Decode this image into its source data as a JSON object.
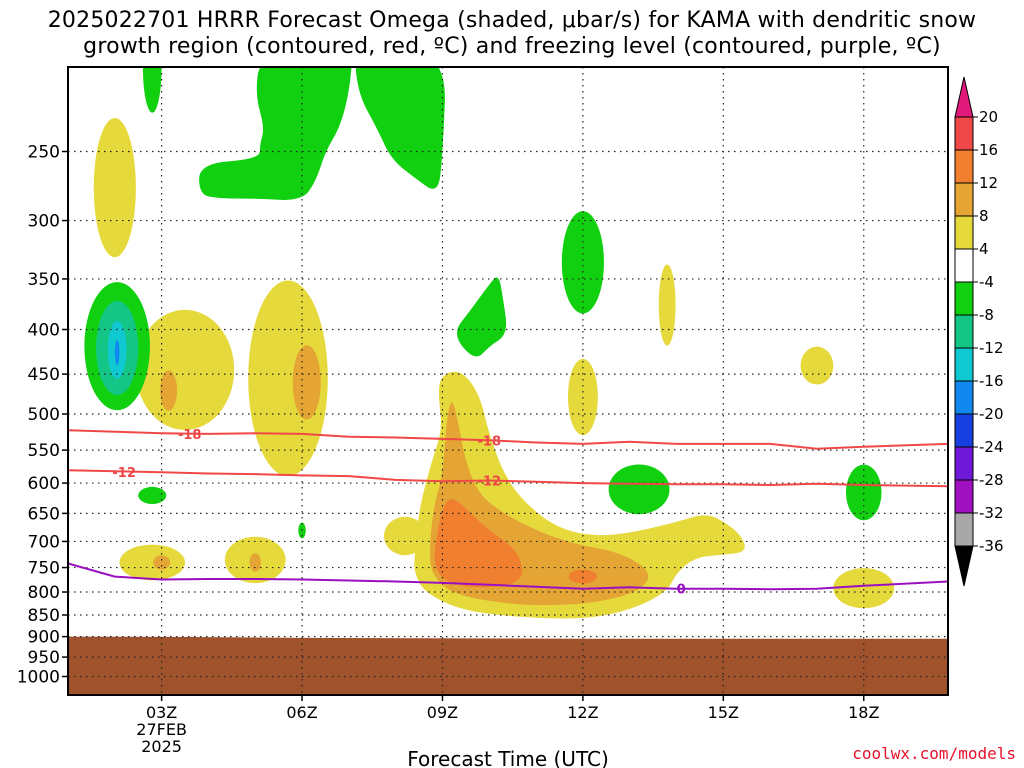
{
  "title_lines": [
    "2025022701 HRRR Forecast Omega (shaded, μbar/s) for KAMA with dendritic snow",
    "growth region (contoured, red, ºC) and freezing level (contoured, purple, ºC)"
  ],
  "credit": "coolwx.com/models",
  "chart_data": {
    "type": "contour",
    "xlabel": "Forecast Time (UTC)",
    "ylabel": "",
    "y_scale": "log-pressure",
    "ylim_hpa": [
      1050,
      200
    ],
    "xlim_hours": [
      0,
      18.8
    ],
    "y_ticks": [
      250,
      300,
      350,
      400,
      450,
      500,
      550,
      600,
      650,
      700,
      750,
      800,
      850,
      900,
      950,
      1000
    ],
    "x_ticks": [
      {
        "hour": 2,
        "label": "03Z",
        "sub": [
          "27FEB",
          "2025"
        ]
      },
      {
        "hour": 5,
        "label": "06Z",
        "sub": []
      },
      {
        "hour": 8,
        "label": "09Z",
        "sub": []
      },
      {
        "hour": 11,
        "label": "12Z",
        "sub": []
      },
      {
        "hour": 14,
        "label": "15Z",
        "sub": []
      },
      {
        "hour": 17,
        "label": "18Z",
        "sub": []
      }
    ],
    "grid": true,
    "colorbar": {
      "labels": [
        "20",
        "16",
        "12",
        "8",
        "4",
        "-4",
        "-8",
        "-12",
        "-16",
        "-20",
        "-24",
        "-28",
        "-32",
        "-36"
      ],
      "bins": [
        {
          "from": 20,
          "to": null,
          "color": "#e0197a"
        },
        {
          "from": 16,
          "to": 20,
          "color": "#f04848"
        },
        {
          "from": 12,
          "to": 16,
          "color": "#f07f30"
        },
        {
          "from": 8,
          "to": 12,
          "color": "#e4a534"
        },
        {
          "from": 4,
          "to": 8,
          "color": "#e6d93c"
        },
        {
          "from": -4,
          "to": 4,
          "color": "#ffffff"
        },
        {
          "from": -8,
          "to": -4,
          "color": "#10d010"
        },
        {
          "from": -12,
          "to": -8,
          "color": "#14c686"
        },
        {
          "from": -16,
          "to": -12,
          "color": "#10c8d0"
        },
        {
          "from": -20,
          "to": -16,
          "color": "#1088f0"
        },
        {
          "from": -24,
          "to": -20,
          "color": "#1840e0"
        },
        {
          "from": -28,
          "to": -24,
          "color": "#7018d8"
        },
        {
          "from": -32,
          "to": -28,
          "color": "#a010c0"
        },
        {
          "from": -36,
          "to": -32,
          "color": "#a8a8a8"
        },
        {
          "from": null,
          "to": -36,
          "color": "#000000"
        }
      ]
    },
    "isotherms": [
      {
        "label": "-18",
        "color": "#f04848",
        "label_hours": [
          2.6,
          9.0
        ],
        "points": [
          [
            0,
            522
          ],
          [
            2,
            526
          ],
          [
            3,
            527
          ],
          [
            4,
            526
          ],
          [
            5,
            527
          ],
          [
            6,
            531
          ],
          [
            7,
            532
          ],
          [
            8,
            534
          ],
          [
            9,
            536
          ],
          [
            10,
            539
          ],
          [
            11,
            541
          ],
          [
            12,
            538
          ],
          [
            13,
            541
          ],
          [
            14,
            541
          ],
          [
            15,
            541
          ],
          [
            16,
            548
          ],
          [
            17,
            545
          ],
          [
            18.8,
            541
          ]
        ]
      },
      {
        "label": "-12",
        "color": "#f04848",
        "label_hours": [
          1.2,
          9.0
        ],
        "points": [
          [
            0,
            580
          ],
          [
            2,
            583
          ],
          [
            3,
            585
          ],
          [
            4,
            586
          ],
          [
            5,
            588
          ],
          [
            6,
            589
          ],
          [
            7,
            595
          ],
          [
            8,
            597
          ],
          [
            9,
            596
          ],
          [
            10,
            598
          ],
          [
            11,
            600
          ],
          [
            12,
            601
          ],
          [
            13,
            602
          ],
          [
            14,
            602
          ],
          [
            15,
            603
          ],
          [
            16,
            601
          ],
          [
            17,
            603
          ],
          [
            18.8,
            605
          ]
        ]
      },
      {
        "label": "0",
        "color": "#9a10c0",
        "label_hours": [
          13.1
        ],
        "points": [
          [
            0,
            742
          ],
          [
            1,
            768
          ],
          [
            2,
            774
          ],
          [
            3,
            773
          ],
          [
            4,
            773
          ],
          [
            5,
            774
          ],
          [
            6,
            776
          ],
          [
            7,
            778
          ],
          [
            8,
            781
          ],
          [
            9,
            785
          ],
          [
            10,
            789
          ],
          [
            11,
            793
          ],
          [
            12,
            790
          ],
          [
            13,
            793
          ],
          [
            14,
            793
          ],
          [
            15,
            794
          ],
          [
            16,
            793
          ],
          [
            17,
            787
          ],
          [
            18.8,
            778
          ]
        ]
      }
    ],
    "freezing_level": {
      "label": "0",
      "color": "#9a10c0"
    },
    "terrain": {
      "color": "#a0522d",
      "top_hpa": [
        [
          0,
          900
        ],
        [
          2.6,
          901
        ],
        [
          5,
          903
        ],
        [
          11.1,
          905
        ],
        [
          18.8,
          905
        ]
      ]
    },
    "omega_regions": [
      {
        "value_bin": "4 to 8",
        "color": "#e6d93c",
        "shape": "ellipse",
        "center_hour": 1.0,
        "center_hpa": 275,
        "half_width_hours": 0.45,
        "half_height_hpa": 50
      },
      {
        "value_bin": "4 to 8",
        "color": "#e6d93c",
        "shape": "ellipse",
        "center_hour": 2.5,
        "center_hpa": 445,
        "half_width_hours": 1.05,
        "half_height_hpa": 70
      },
      {
        "value_bin": "8 to 12",
        "color": "#e4a534",
        "shape": "ellipse",
        "center_hour": 2.15,
        "center_hpa": 470,
        "half_width_hours": 0.18,
        "half_height_hpa": 25
      },
      {
        "value_bin": "4 to 8",
        "color": "#e6d93c",
        "shape": "ellipse",
        "center_hour": 4.7,
        "center_hpa": 455,
        "half_width_hours": 0.85,
        "half_height_hpa": 115
      },
      {
        "value_bin": "8 to 12",
        "color": "#e4a534",
        "shape": "ellipse",
        "center_hour": 5.1,
        "center_hpa": 460,
        "half_width_hours": 0.3,
        "half_height_hpa": 45
      },
      {
        "value_bin": "4 to 8",
        "color": "#e6d93c",
        "shape": "ellipse",
        "center_hour": 7.2,
        "center_hpa": 690,
        "half_width_hours": 0.45,
        "half_height_hpa": 35
      },
      {
        "value_bin": "4 to 8",
        "color": "#e6d93c",
        "shape": "ellipse",
        "center_hour": 1.8,
        "center_hpa": 740,
        "half_width_hours": 0.7,
        "half_height_hpa": 35
      },
      {
        "value_bin": "8 to 12",
        "color": "#e4a534",
        "shape": "ellipse",
        "center_hour": 2.0,
        "center_hpa": 740,
        "half_width_hours": 0.18,
        "half_height_hpa": 14
      },
      {
        "value_bin": "4 to 8",
        "color": "#e6d93c",
        "shape": "ellipse",
        "center_hour": 4.0,
        "center_hpa": 735,
        "half_width_hours": 0.65,
        "half_height_hpa": 45
      },
      {
        "value_bin": "8 to 12",
        "color": "#e4a534",
        "shape": "ellipse",
        "center_hour": 4.0,
        "center_hpa": 740,
        "half_width_hours": 0.12,
        "half_height_hpa": 18
      },
      {
        "value_bin": "4 to 8",
        "color": "#e6d93c",
        "shape": "ellipse",
        "center_hour": 12.8,
        "center_hpa": 375,
        "half_width_hours": 0.18,
        "half_height_hpa": 40
      },
      {
        "value_bin": "4 to 8",
        "color": "#e6d93c",
        "shape": "ellipse",
        "center_hour": 16.0,
        "center_hpa": 440,
        "half_width_hours": 0.35,
        "half_height_hpa": 22
      },
      {
        "value_bin": "4 to 8",
        "color": "#e6d93c",
        "shape": "ellipse",
        "center_hour": 17.0,
        "center_hpa": 792,
        "half_width_hours": 0.65,
        "half_height_hpa": 42
      },
      {
        "value_bin": "4 to 8",
        "color": "#e6d93c",
        "shape": "ellipse",
        "center_hour": 11.0,
        "center_hpa": 478,
        "half_width_hours": 0.32,
        "half_height_hpa": 48
      },
      {
        "value_bin": "4 to 8",
        "color": "#e6d93c",
        "shape": "polygon",
        "points": [
          [
            7.4,
            730
          ],
          [
            7.5,
            640
          ],
          [
            7.8,
            560
          ],
          [
            8.0,
            520
          ],
          [
            7.9,
            470
          ],
          [
            8.0,
            450
          ],
          [
            8.4,
            445
          ],
          [
            8.8,
            475
          ],
          [
            9.0,
            530
          ],
          [
            9.4,
            600
          ],
          [
            10.0,
            650
          ],
          [
            10.6,
            680
          ],
          [
            11.3,
            690
          ],
          [
            12.0,
            685
          ],
          [
            13.0,
            665
          ],
          [
            13.6,
            650
          ],
          [
            14.0,
            663
          ],
          [
            14.4,
            690
          ],
          [
            14.5,
            720
          ],
          [
            14.0,
            725
          ],
          [
            13.4,
            730
          ],
          [
            13.0,
            760
          ],
          [
            12.8,
            800
          ],
          [
            12.0,
            840
          ],
          [
            11.0,
            860
          ],
          [
            9.6,
            855
          ],
          [
            8.4,
            840
          ],
          [
            7.6,
            800
          ],
          [
            7.4,
            760
          ]
        ]
      },
      {
        "value_bin": "8 to 12",
        "color": "#e4a534",
        "shape": "polygon",
        "points": [
          [
            7.7,
            740
          ],
          [
            7.8,
            640
          ],
          [
            8.0,
            590
          ],
          [
            8.1,
            500
          ],
          [
            8.2,
            480
          ],
          [
            8.3,
            500
          ],
          [
            8.5,
            570
          ],
          [
            8.8,
            620
          ],
          [
            9.3,
            650
          ],
          [
            10.0,
            680
          ],
          [
            10.8,
            705
          ],
          [
            11.8,
            720
          ],
          [
            12.5,
            760
          ],
          [
            12.2,
            800
          ],
          [
            11.2,
            825
          ],
          [
            10.0,
            830
          ],
          [
            9.0,
            820
          ],
          [
            8.3,
            805
          ],
          [
            7.9,
            780
          ]
        ]
      },
      {
        "value_bin": "12 to 16",
        "color": "#f07f30",
        "shape": "polygon",
        "points": [
          [
            7.8,
            740
          ],
          [
            7.9,
            680
          ],
          [
            8.0,
            640
          ],
          [
            8.2,
            620
          ],
          [
            8.6,
            650
          ],
          [
            9.0,
            680
          ],
          [
            9.5,
            710
          ],
          [
            9.7,
            740
          ],
          [
            9.7,
            775
          ],
          [
            9.2,
            790
          ],
          [
            8.5,
            790
          ],
          [
            8.0,
            775
          ]
        ]
      },
      {
        "value_bin": "12 to 16",
        "color": "#f07f30",
        "shape": "ellipse",
        "center_hour": 11.0,
        "center_hpa": 768,
        "half_width_hours": 0.3,
        "half_height_hpa": 14
      },
      {
        "value_bin": "-4 to -8",
        "color": "#10d010",
        "shape": "ellipse",
        "center_hour": 1.05,
        "center_hpa": 418,
        "half_width_hours": 0.7,
        "half_height_hpa": 70
      },
      {
        "value_bin": "-8 to -12",
        "color": "#14c686",
        "shape": "ellipse",
        "center_hour": 1.05,
        "center_hpa": 420,
        "half_width_hours": 0.45,
        "half_height_hpa": 52
      },
      {
        "value_bin": "-12 to -16",
        "color": "#10c8d0",
        "shape": "ellipse",
        "center_hour": 1.05,
        "center_hpa": 422,
        "half_width_hours": 0.2,
        "half_height_hpa": 32
      },
      {
        "value_bin": "-16 to -20",
        "color": "#1088f0",
        "shape": "ellipse",
        "center_hour": 1.05,
        "center_hpa": 425,
        "half_width_hours": 0.05,
        "half_height_hpa": 14
      },
      {
        "value_bin": "-4 to -8",
        "color": "#10d010",
        "shape": "ellipse",
        "center_hour": 1.8,
        "center_hpa": 200,
        "half_width_hours": 0.2,
        "half_height_hpa": 24
      },
      {
        "value_bin": "-4 to -8",
        "color": "#10d010",
        "shape": "polygon",
        "points": [
          [
            2.8,
            258
          ],
          [
            4.1,
            255
          ],
          [
            4.1,
            245
          ],
          [
            4.2,
            235
          ],
          [
            4.0,
            215
          ],
          [
            4.1,
            195
          ],
          [
            5.0,
            195
          ],
          [
            5.3,
            190
          ],
          [
            6.1,
            190
          ],
          [
            6.0,
            215
          ],
          [
            5.8,
            235
          ],
          [
            5.5,
            250
          ],
          [
            5.3,
            270
          ],
          [
            5.0,
            285
          ],
          [
            4.0,
            283
          ],
          [
            3.2,
            283
          ],
          [
            2.8,
            280
          ]
        ]
      },
      {
        "value_bin": "-4 to -8",
        "color": "#10d010",
        "shape": "polygon",
        "points": [
          [
            6.1,
            190
          ],
          [
            8.1,
            190
          ],
          [
            8.0,
            255
          ],
          [
            7.9,
            280
          ],
          [
            7.4,
            268
          ],
          [
            6.9,
            255
          ],
          [
            6.6,
            235
          ],
          [
            6.2,
            215
          ]
        ]
      },
      {
        "value_bin": "-4 to -8",
        "color": "#10d010",
        "shape": "polygon",
        "points": [
          [
            8.2,
            405
          ],
          [
            8.6,
            380
          ],
          [
            9.0,
            355
          ],
          [
            9.2,
            345
          ],
          [
            9.3,
            370
          ],
          [
            9.4,
            405
          ],
          [
            9.0,
            418
          ],
          [
            8.7,
            435
          ]
        ]
      },
      {
        "value_bin": "-4 to -8",
        "color": "#10d010",
        "shape": "ellipse",
        "center_hour": 11.0,
        "center_hpa": 335,
        "half_width_hours": 0.45,
        "half_height_hpa": 45
      },
      {
        "value_bin": "-4 to -8",
        "color": "#10d010",
        "shape": "ellipse",
        "center_hour": 12.2,
        "center_hpa": 610,
        "half_width_hours": 0.65,
        "half_height_hpa": 40
      },
      {
        "value_bin": "-4 to -8",
        "color": "#10d010",
        "shape": "ellipse",
        "center_hour": 17.0,
        "center_hpa": 615,
        "half_width_hours": 0.38,
        "half_height_hpa": 45
      },
      {
        "value_bin": "-4 to -8",
        "color": "#10d010",
        "shape": "ellipse",
        "center_hour": 1.8,
        "center_hpa": 620,
        "half_width_hours": 0.3,
        "half_height_hpa": 14
      },
      {
        "value_bin": "-4 to -8",
        "color": "#10d010",
        "shape": "ellipse",
        "center_hour": 5.0,
        "center_hpa": 680,
        "half_width_hours": 0.08,
        "half_height_hpa": 14
      }
    ]
  }
}
